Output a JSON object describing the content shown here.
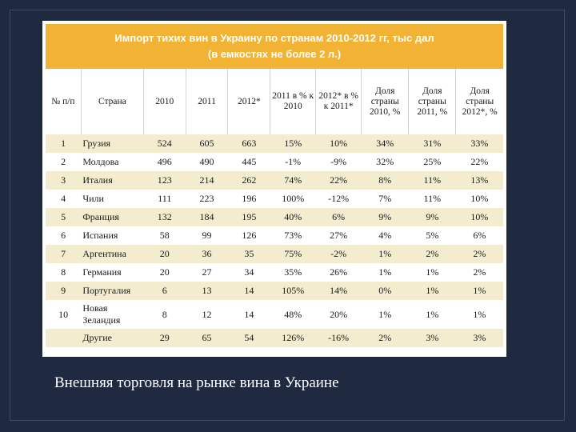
{
  "table": {
    "title_line1": "Импорт тихих вин в Украину по странам 2010-2012 гг, тыс дал",
    "title_line2": "(в емкостях не более 2 л.)",
    "headers": [
      "№ п/п",
      "Страна",
      "2010",
      "2011",
      "2012*",
      "2011 в % к 2010",
      "2012* в % к 2011*",
      "Доля страны 2010, %",
      "Доля страны 2011, %",
      "Доля страны 2012*, %"
    ],
    "rows": [
      [
        "1",
        "Грузия",
        "524",
        "605",
        "663",
        "15%",
        "10%",
        "34%",
        "31%",
        "33%"
      ],
      [
        "2",
        "Молдова",
        "496",
        "490",
        "445",
        "-1%",
        "-9%",
        "32%",
        "25%",
        "22%"
      ],
      [
        "3",
        "Италия",
        "123",
        "214",
        "262",
        "74%",
        "22%",
        "8%",
        "11%",
        "13%"
      ],
      [
        "4",
        "Чили",
        "111",
        "223",
        "196",
        "100%",
        "-12%",
        "7%",
        "11%",
        "10%"
      ],
      [
        "5",
        "Франция",
        "132",
        "184",
        "195",
        "40%",
        "6%",
        "9%",
        "9%",
        "10%"
      ],
      [
        "6",
        "Испания",
        "58",
        "99",
        "126",
        "73%",
        "27%",
        "4%",
        "5%",
        "6%"
      ],
      [
        "7",
        "Аргентина",
        "20",
        "36",
        "35",
        "75%",
        "-2%",
        "1%",
        "2%",
        "2%"
      ],
      [
        "8",
        "Германия",
        "20",
        "27",
        "34",
        "35%",
        "26%",
        "1%",
        "1%",
        "2%"
      ],
      [
        "9",
        "Португалия",
        "6",
        "13",
        "14",
        "105%",
        "14%",
        "0%",
        "1%",
        "1%"
      ],
      [
        "10",
        "Новая Зеландия",
        "8",
        "12",
        "14",
        "48%",
        "20%",
        "1%",
        "1%",
        "1%"
      ],
      [
        "",
        "Другие",
        "29",
        "65",
        "54",
        "126%",
        "-16%",
        "2%",
        "3%",
        "3%"
      ]
    ]
  },
  "caption": "Внешняя торговля на рынке вина в Украине"
}
